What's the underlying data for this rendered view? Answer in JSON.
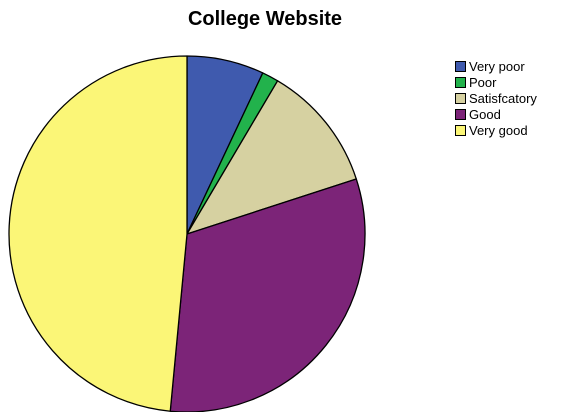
{
  "chart_data": {
    "type": "pie",
    "title": "College Website",
    "labels": [
      "Very poor",
      "Poor",
      "Satisfcatory",
      "Good",
      "Very good"
    ],
    "values": [
      7.0,
      1.5,
      11.5,
      31.5,
      48.5
    ],
    "colors": [
      "#3f5aae",
      "#22b24c",
      "#d6d1a1",
      "#7c2478",
      "#fbf677"
    ],
    "start_angle": "12 o'clock, clockwise",
    "legend_position": "top-right"
  }
}
